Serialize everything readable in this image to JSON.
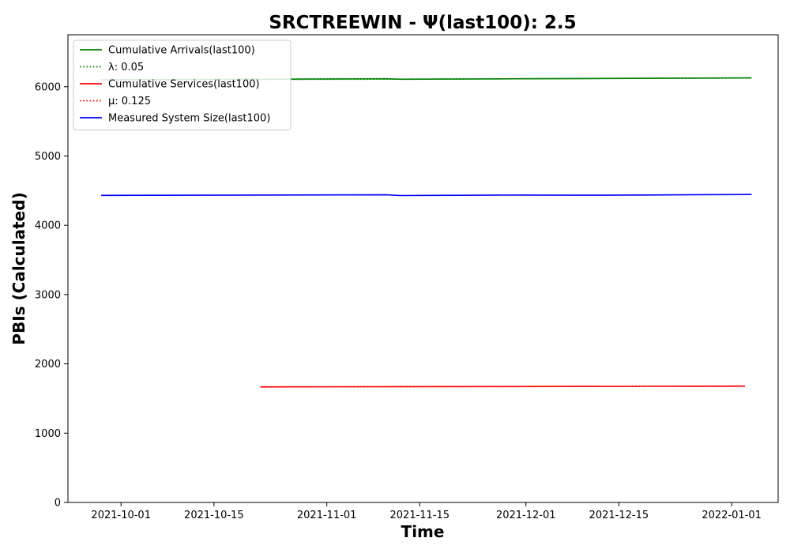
{
  "chart_data": {
    "type": "line",
    "title": "SRCTREEWIN -  Ψ(last100): 2.5",
    "xlabel": "Time",
    "ylabel": "PBIs (Calculated)",
    "xlim": [
      "2021-09-23",
      "2022-01-08"
    ],
    "ylim": [
      0,
      6750
    ],
    "x_ticks": [
      "2021-10-01",
      "2021-10-15",
      "2021-11-01",
      "2021-11-15",
      "2021-12-01",
      "2021-12-15",
      "2022-01-01"
    ],
    "y_ticks": [
      0,
      1000,
      2000,
      3000,
      4000,
      5000,
      6000
    ],
    "grid": false,
    "legend_position": "top-left",
    "series": [
      {
        "name": "Cumulative Arrivals(last100)",
        "color": "#008000",
        "style": "solid",
        "x": [
          "2021-09-28",
          "2021-10-22",
          "2021-11-10",
          "2021-11-12",
          "2021-11-30",
          "2021-12-10",
          "2021-12-20",
          "2021-12-28",
          "2022-01-04"
        ],
        "y": [
          6100,
          6108,
          6115,
          6108,
          6115,
          6118,
          6122,
          6125,
          6128
        ]
      },
      {
        "name": "λ: 0.05",
        "color": "#008000",
        "style": "dotted",
        "x": [
          "2021-09-28",
          "2022-01-04"
        ],
        "y": [
          6097,
          6125
        ]
      },
      {
        "name": "Cumulative Services(last100)",
        "color": "#ff0000",
        "style": "solid",
        "x": [
          "2021-10-22",
          "2021-11-10",
          "2021-11-30",
          "2021-12-20",
          "2022-01-03"
        ],
        "y": [
          1668,
          1670,
          1673,
          1676,
          1678
        ]
      },
      {
        "name": "μ: 0.125",
        "color": "#ff0000",
        "style": "dotted",
        "x": [
          "2021-10-22",
          "2022-01-03"
        ],
        "y": [
          1666,
          1680
        ]
      },
      {
        "name": "Measured System Size(last100)",
        "color": "#0000ff",
        "style": "solid",
        "x": [
          "2021-09-28",
          "2021-10-22",
          "2021-11-10",
          "2021-11-12",
          "2021-11-30",
          "2021-12-10",
          "2021-12-20",
          "2021-12-28",
          "2022-01-04"
        ],
        "y": [
          4432,
          4436,
          4440,
          4430,
          4437,
          4434,
          4438,
          4442,
          4445
        ]
      }
    ]
  }
}
